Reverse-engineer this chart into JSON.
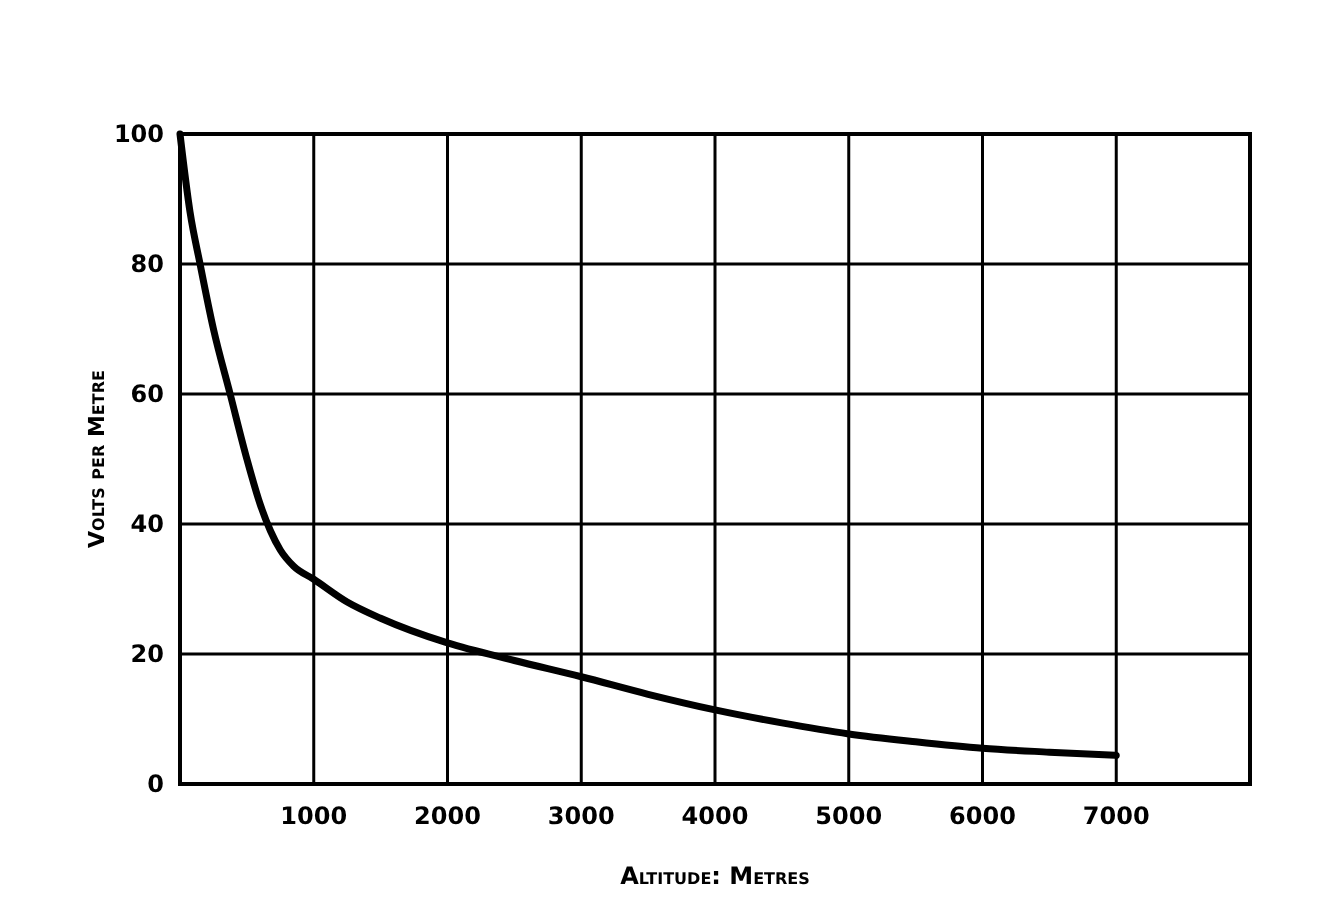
{
  "chart_data": {
    "type": "line",
    "xlabel": "Altitude: Metres",
    "ylabel": "Volts per Metre",
    "x": [
      0,
      75,
      150,
      250,
      375,
      500,
      600,
      675,
      750,
      850,
      1000,
      1250,
      1500,
      2000,
      2500,
      3000,
      3500,
      4000,
      4500,
      5000,
      5500,
      6000,
      6500,
      7000
    ],
    "series": [
      {
        "color": "#000000",
        "values": [
          100,
          88,
          80,
          70,
          60,
          50,
          43,
          39,
          36,
          33.5,
          31.5,
          28,
          25.5,
          21.7,
          19,
          16.5,
          13.8,
          11.4,
          9.4,
          7.7,
          6.5,
          5.5,
          4.9,
          4.4
        ]
      }
    ],
    "xlim": [
      0,
      8000
    ],
    "xticks": [
      1000,
      2000,
      3000,
      4000,
      5000,
      6000,
      7000
    ],
    "ylim": [
      0,
      100
    ],
    "yticks": [
      0,
      20,
      40,
      60,
      80,
      100
    ],
    "grid": true,
    "marker": "none",
    "line_style": "solid"
  }
}
